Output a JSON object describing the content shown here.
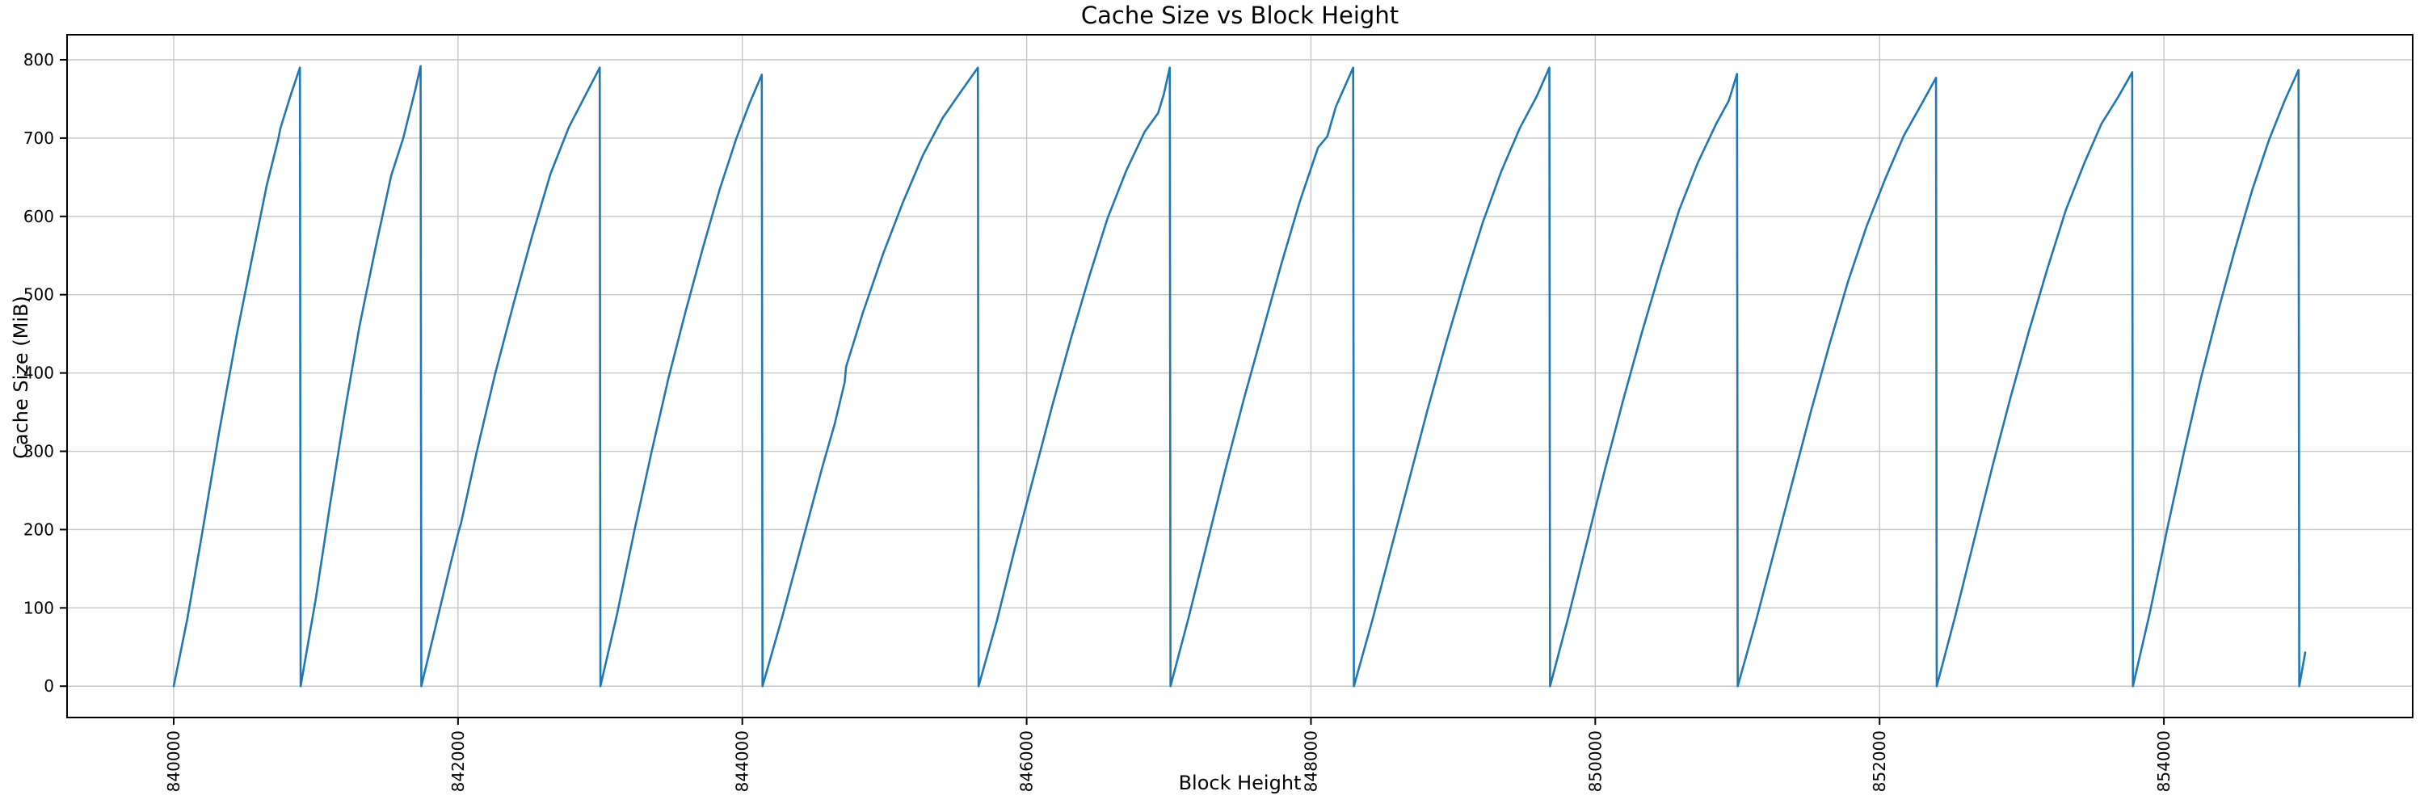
{
  "figure": {
    "background": "#ffffff"
  },
  "chart_data": {
    "type": "line",
    "title": "Cache Size vs Block Height",
    "xlabel": "Block Height",
    "ylabel": "Cache Size (MiB)",
    "xlim": [
      839250,
      855750
    ],
    "ylim": [
      -40,
      832
    ],
    "grid": true,
    "legend": "none",
    "line_color": "#1f77b4",
    "grid_color": "#c6c6c6",
    "spine_color": "#000000",
    "xticks": [
      {
        "value": 840000,
        "label": "840000"
      },
      {
        "value": 842000,
        "label": "842000"
      },
      {
        "value": 844000,
        "label": "844000"
      },
      {
        "value": 846000,
        "label": "846000"
      },
      {
        "value": 848000,
        "label": "848000"
      },
      {
        "value": 850000,
        "label": "850000"
      },
      {
        "value": 852000,
        "label": "852000"
      },
      {
        "value": 854000,
        "label": "854000"
      }
    ],
    "yticks": [
      {
        "value": 0,
        "label": "0"
      },
      {
        "value": 100,
        "label": "100"
      },
      {
        "value": 200,
        "label": "200"
      },
      {
        "value": 300,
        "label": "300"
      },
      {
        "value": 400,
        "label": "400"
      },
      {
        "value": 500,
        "label": "500"
      },
      {
        "value": 600,
        "label": "600"
      },
      {
        "value": 700,
        "label": "700"
      },
      {
        "value": 800,
        "label": "800"
      }
    ],
    "series": [
      {
        "name": "cache_size",
        "points": [
          [
            840000,
            0
          ],
          [
            840095,
            85
          ],
          [
            840200,
            195
          ],
          [
            840320,
            325
          ],
          [
            840445,
            450
          ],
          [
            840555,
            550
          ],
          [
            840655,
            640
          ],
          [
            840735,
            698
          ],
          [
            840750,
            712
          ],
          [
            840825,
            756
          ],
          [
            840888,
            790
          ],
          [
            840893,
            0
          ],
          [
            841000,
            112
          ],
          [
            841100,
            232
          ],
          [
            841205,
            352
          ],
          [
            841305,
            458
          ],
          [
            841420,
            560
          ],
          [
            841530,
            652
          ],
          [
            841615,
            700
          ],
          [
            841645,
            722
          ],
          [
            841700,
            762
          ],
          [
            841737,
            792
          ],
          [
            841742,
            0
          ],
          [
            841850,
            82
          ],
          [
            841950,
            158
          ],
          [
            842005,
            198
          ],
          [
            842020,
            207
          ],
          [
            842130,
            298
          ],
          [
            842260,
            398
          ],
          [
            842390,
            488
          ],
          [
            842520,
            574
          ],
          [
            842650,
            654
          ],
          [
            842780,
            714
          ],
          [
            842900,
            756
          ],
          [
            842997,
            790
          ],
          [
            843002,
            0
          ],
          [
            843120,
            93
          ],
          [
            843240,
            198
          ],
          [
            843360,
            298
          ],
          [
            843480,
            393
          ],
          [
            843600,
            478
          ],
          [
            843720,
            558
          ],
          [
            843840,
            634
          ],
          [
            843955,
            698
          ],
          [
            844050,
            744
          ],
          [
            844137,
            781
          ],
          [
            844142,
            0
          ],
          [
            844280,
            88
          ],
          [
            844420,
            183
          ],
          [
            844560,
            278
          ],
          [
            844650,
            335
          ],
          [
            844720,
            388
          ],
          [
            844730,
            408
          ],
          [
            844850,
            478
          ],
          [
            844990,
            552
          ],
          [
            845130,
            618
          ],
          [
            845270,
            678
          ],
          [
            845410,
            726
          ],
          [
            845540,
            760
          ],
          [
            845657,
            790
          ],
          [
            845662,
            0
          ],
          [
            845790,
            83
          ],
          [
            845920,
            178
          ],
          [
            846050,
            268
          ],
          [
            846180,
            358
          ],
          [
            846310,
            443
          ],
          [
            846440,
            523
          ],
          [
            846570,
            598
          ],
          [
            846700,
            658
          ],
          [
            846830,
            708
          ],
          [
            846925,
            732
          ],
          [
            846965,
            756
          ],
          [
            847007,
            790
          ],
          [
            847012,
            0
          ],
          [
            847140,
            88
          ],
          [
            847270,
            183
          ],
          [
            847400,
            278
          ],
          [
            847530,
            368
          ],
          [
            847660,
            453
          ],
          [
            847790,
            538
          ],
          [
            847920,
            618
          ],
          [
            848050,
            688
          ],
          [
            848115,
            702
          ],
          [
            848175,
            740
          ],
          [
            848297,
            790
          ],
          [
            848302,
            0
          ],
          [
            848430,
            83
          ],
          [
            848560,
            173
          ],
          [
            848690,
            263
          ],
          [
            848820,
            353
          ],
          [
            848950,
            438
          ],
          [
            849080,
            518
          ],
          [
            849210,
            593
          ],
          [
            849340,
            658
          ],
          [
            849470,
            713
          ],
          [
            849590,
            754
          ],
          [
            849677,
            790
          ],
          [
            849682,
            0
          ],
          [
            849810,
            88
          ],
          [
            849940,
            183
          ],
          [
            850070,
            278
          ],
          [
            850200,
            368
          ],
          [
            850330,
            453
          ],
          [
            850460,
            533
          ],
          [
            850590,
            608
          ],
          [
            850720,
            668
          ],
          [
            850850,
            718
          ],
          [
            850940,
            748
          ],
          [
            850997,
            782
          ],
          [
            851002,
            0
          ],
          [
            851130,
            83
          ],
          [
            851260,
            173
          ],
          [
            851390,
            263
          ],
          [
            851520,
            353
          ],
          [
            851650,
            438
          ],
          [
            851780,
            518
          ],
          [
            851910,
            588
          ],
          [
            852040,
            648
          ],
          [
            852170,
            703
          ],
          [
            852300,
            745
          ],
          [
            852397,
            777
          ],
          [
            852402,
            0
          ],
          [
            852530,
            88
          ],
          [
            852660,
            183
          ],
          [
            852790,
            278
          ],
          [
            852920,
            368
          ],
          [
            853050,
            453
          ],
          [
            853180,
            533
          ],
          [
            853310,
            608
          ],
          [
            853440,
            668
          ],
          [
            853560,
            718
          ],
          [
            853680,
            753
          ],
          [
            853777,
            784
          ],
          [
            853782,
            0
          ],
          [
            853900,
            93
          ],
          [
            854020,
            198
          ],
          [
            854140,
            298
          ],
          [
            854260,
            393
          ],
          [
            854380,
            478
          ],
          [
            854500,
            558
          ],
          [
            854620,
            633
          ],
          [
            854740,
            698
          ],
          [
            854850,
            748
          ],
          [
            854947,
            787
          ],
          [
            854952,
            0
          ],
          [
            854994,
            43
          ]
        ]
      }
    ]
  }
}
